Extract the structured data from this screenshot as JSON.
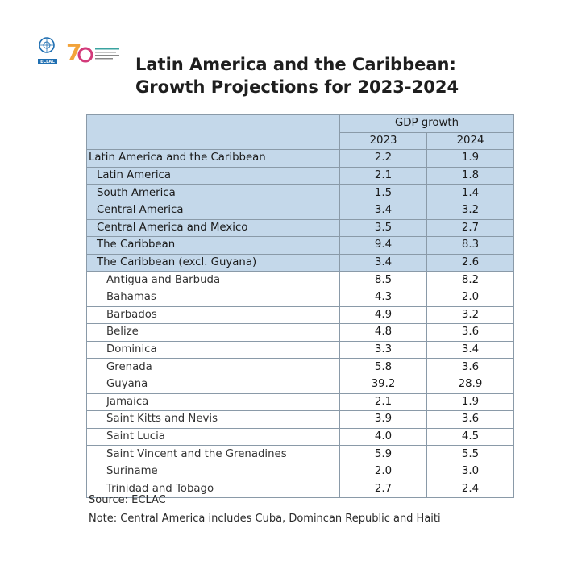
{
  "header": {
    "title_line1": "Latin America and the Caribbean:",
    "title_line2": "Growth Projections for 2023-2024",
    "logo": {
      "text": "ECLAC",
      "colors": [
        "#1f6fb2",
        "#f2a33a",
        "#d33a7a",
        "#3aa3a0"
      ]
    }
  },
  "table": {
    "group_header": "GDP growth",
    "years": [
      "2023",
      "2024"
    ],
    "aggregates": [
      {
        "name": "Latin America and the Caribbean",
        "y2023": "2.2",
        "y2024": "1.9"
      },
      {
        "name": "Latin America",
        "y2023": "2.1",
        "y2024": "1.8"
      },
      {
        "name": "South America",
        "y2023": "1.5",
        "y2024": "1.4"
      },
      {
        "name": "Central America",
        "y2023": "3.4",
        "y2024": "3.2"
      },
      {
        "name": "Central America and Mexico",
        "y2023": "3.5",
        "y2024": "2.7"
      },
      {
        "name": "The Caribbean",
        "y2023": "9.4",
        "y2024": "8.3"
      },
      {
        "name": "The Caribbean (excl. Guyana)",
        "y2023": "3.4",
        "y2024": "2.6"
      }
    ],
    "countries": [
      {
        "name": "Antigua and Barbuda",
        "y2023": "8.5",
        "y2024": "8.2"
      },
      {
        "name": "Bahamas",
        "y2023": "4.3",
        "y2024": "2.0"
      },
      {
        "name": "Barbados",
        "y2023": "4.9",
        "y2024": "3.2"
      },
      {
        "name": "Belize",
        "y2023": "4.8",
        "y2024": "3.6"
      },
      {
        "name": "Dominica",
        "y2023": "3.3",
        "y2024": "3.4"
      },
      {
        "name": "Grenada",
        "y2023": "5.8",
        "y2024": "3.6"
      },
      {
        "name": "Guyana",
        "y2023": "39.2",
        "y2024": "28.9"
      },
      {
        "name": "Jamaica",
        "y2023": "2.1",
        "y2024": "1.9"
      },
      {
        "name": "Saint Kitts and Nevis",
        "y2023": "3.9",
        "y2024": "3.6"
      },
      {
        "name": "Saint Lucia",
        "y2023": "4.0",
        "y2024": "4.5"
      },
      {
        "name": "Saint Vincent and the Grenadines",
        "y2023": "5.9",
        "y2024": "5.5"
      },
      {
        "name": "Suriname",
        "y2023": "2.0",
        "y2024": "3.0"
      },
      {
        "name": "Trinidad and Tobago",
        "y2023": "2.7",
        "y2024": "2.4"
      }
    ]
  },
  "footer": {
    "source": "Source: ECLAC",
    "note": "Note: Central America includes Cuba, Domincan Republic and Haiti"
  }
}
